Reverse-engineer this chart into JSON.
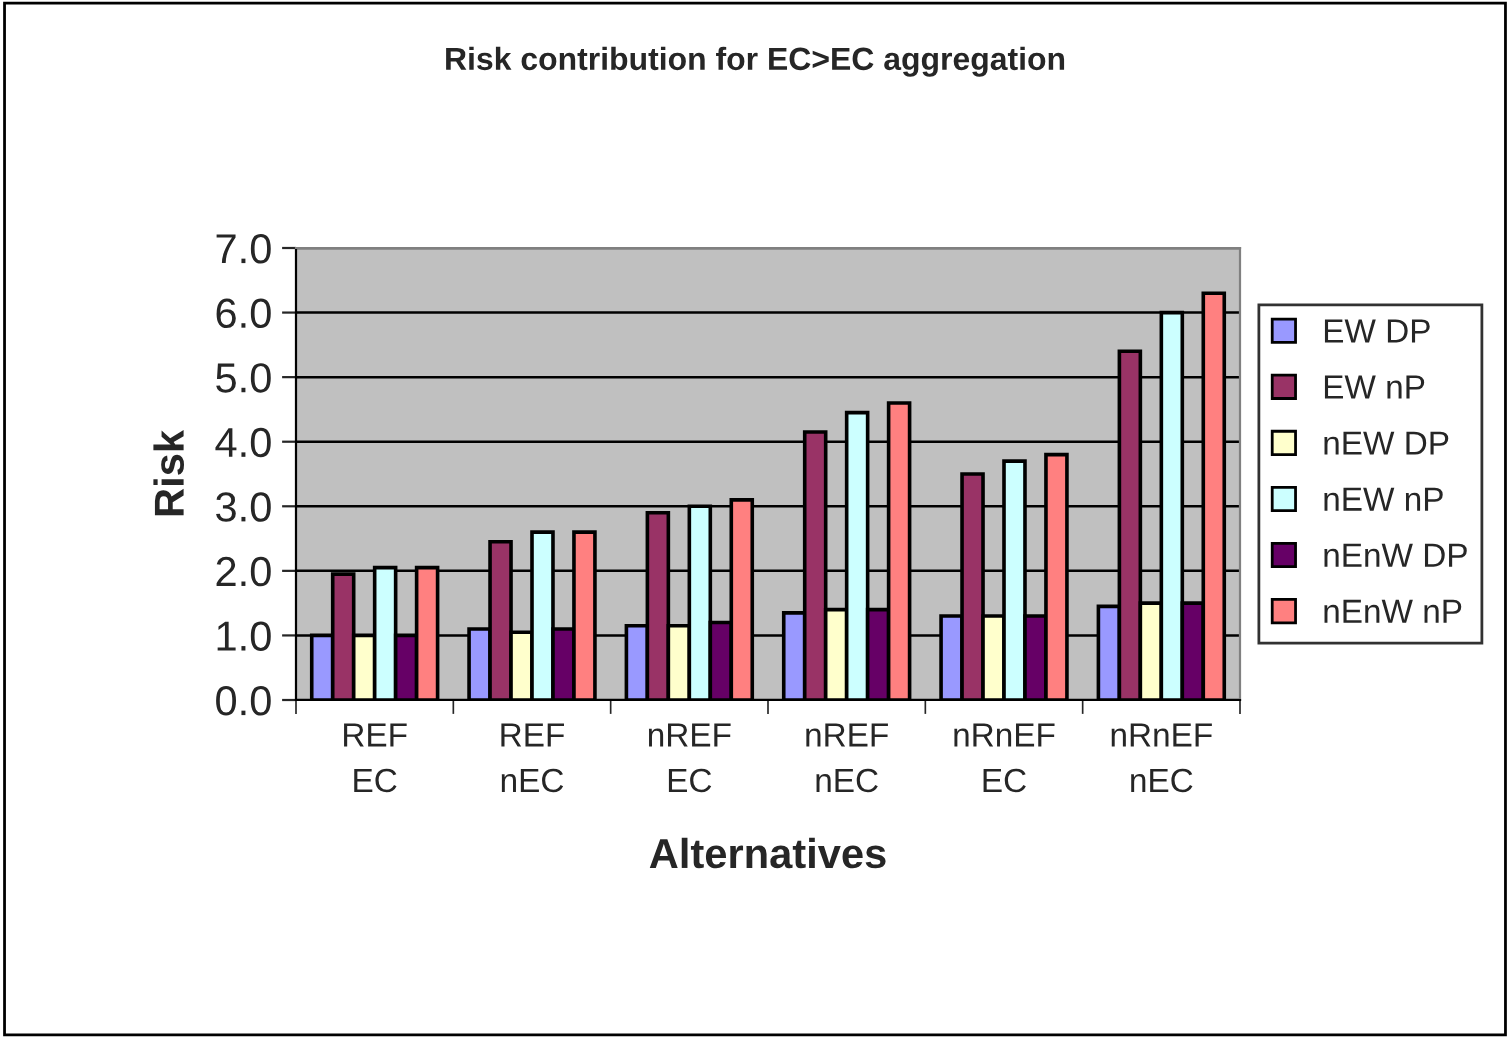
{
  "chart_data": {
    "type": "bar",
    "title": "Risk contribution for EC>EC aggregation",
    "xlabel": "Alternatives",
    "ylabel": "Risk",
    "categories": [
      "REF\nEC",
      "REF\nnEC",
      "nREF\nEC",
      "nREF\nnEC",
      "nRnEF\nEC",
      "nRnEF\nnEC"
    ],
    "series": [
      {
        "name": "EW DP",
        "color": "#9999ff",
        "values": [
          1.0,
          1.1,
          1.15,
          1.35,
          1.3,
          1.45
        ]
      },
      {
        "name": "EW nP",
        "color": "#993366",
        "values": [
          1.95,
          2.45,
          2.9,
          4.15,
          3.5,
          5.4
        ]
      },
      {
        "name": "nEW DP",
        "color": "#ffffcc",
        "values": [
          1.0,
          1.05,
          1.15,
          1.4,
          1.3,
          1.5
        ]
      },
      {
        "name": "nEW nP",
        "color": "#ccffff",
        "values": [
          2.05,
          2.6,
          3.0,
          4.45,
          3.7,
          6.0
        ]
      },
      {
        "name": "nEnW DP",
        "color": "#660066",
        "values": [
          1.0,
          1.1,
          1.2,
          1.4,
          1.3,
          1.5
        ]
      },
      {
        "name": "nEnW nP",
        "color": "#ff8080",
        "values": [
          2.05,
          2.6,
          3.1,
          4.6,
          3.8,
          6.3
        ]
      }
    ],
    "ylim": [
      0,
      7
    ],
    "yticks": [
      {
        "value": 0,
        "label": "0.0"
      },
      {
        "value": 1,
        "label": "1.0"
      },
      {
        "value": 2,
        "label": "2.0"
      },
      {
        "value": 3,
        "label": "3.0"
      },
      {
        "value": 4,
        "label": "4.0"
      },
      {
        "value": 5,
        "label": "5.0"
      },
      {
        "value": 6,
        "label": "6.0"
      },
      {
        "value": 7,
        "label": "7.0"
      }
    ],
    "grid": "y",
    "legend": "right"
  }
}
